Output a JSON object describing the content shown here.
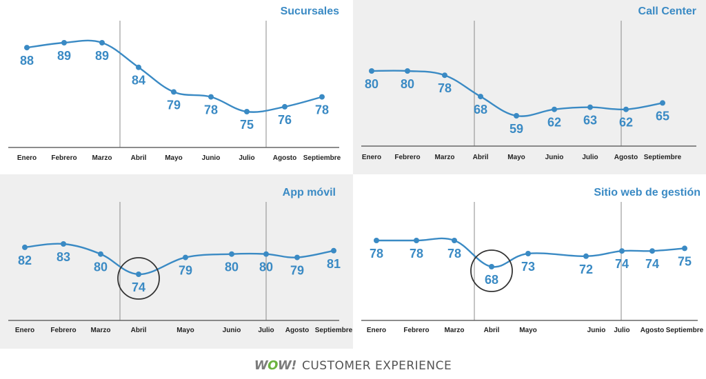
{
  "chart_data": [
    {
      "type": "line",
      "title": "Sucursales",
      "categories": [
        "Enero",
        "Febrero",
        "Marzo",
        "Abril",
        "Mayo",
        "Junio",
        "Julio",
        "Agosto",
        "Septiembre"
      ],
      "values": [
        88,
        89,
        89,
        84,
        79,
        78,
        75,
        76,
        78
      ],
      "grid": false,
      "reference_lines_between": [
        [
          "Marzo",
          "Abril"
        ],
        [
          "Julio",
          "Agosto"
        ]
      ],
      "highlighted_category": null,
      "background": "#ffffff"
    },
    {
      "type": "line",
      "title": "Call Center",
      "categories": [
        "Enero",
        "Febrero",
        "Marzo",
        "Abril",
        "Mayo",
        "Junio",
        "Julio",
        "Agosto",
        "Septiembre"
      ],
      "values": [
        80,
        80,
        78,
        68,
        59,
        62,
        63,
        62,
        65
      ],
      "grid": false,
      "reference_lines_between": [
        [
          "Marzo",
          "Abril"
        ],
        [
          "Julio",
          "Agosto"
        ]
      ],
      "highlighted_category": null,
      "background": "#efefef"
    },
    {
      "type": "line",
      "title": "App móvil",
      "categories": [
        "Enero",
        "Febrero",
        "Marzo",
        "Abril",
        "Mayo",
        "Junio",
        "Julio",
        "Agosto",
        "Septiembre"
      ],
      "values": [
        82,
        83,
        80,
        74,
        79,
        80,
        80,
        79,
        81
      ],
      "grid": false,
      "reference_lines_between": [
        [
          "Marzo",
          "Abril"
        ],
        [
          "Julio",
          "Agosto"
        ]
      ],
      "highlighted_category": "Abril",
      "background": "#efefef"
    },
    {
      "type": "line",
      "title": "Sitio web de gestión",
      "categories": [
        "Enero",
        "Febrero",
        "Marzo",
        "Abril",
        "Mayo",
        "Junio",
        "Julio",
        "Agosto",
        "Septiembre"
      ],
      "values": [
        78,
        78,
        78,
        68,
        73,
        72,
        74,
        74,
        75
      ],
      "grid": false,
      "reference_lines_between": [
        [
          "Marzo",
          "Abril"
        ],
        [
          "Julio",
          "Agosto"
        ]
      ],
      "highlighted_category": "Abril",
      "background": "#ffffff"
    }
  ],
  "colors": {
    "line": "#3a8ac4",
    "axis": "#666666",
    "ref_line": "#888888",
    "circle": "#333333",
    "wow_o": "#6cb33f"
  },
  "footer": {
    "wow_w1": "W",
    "wow_o": "O",
    "wow_w2": "W",
    "wow_bang": "!",
    "text": "CUSTOMER EXPERIENCE"
  }
}
